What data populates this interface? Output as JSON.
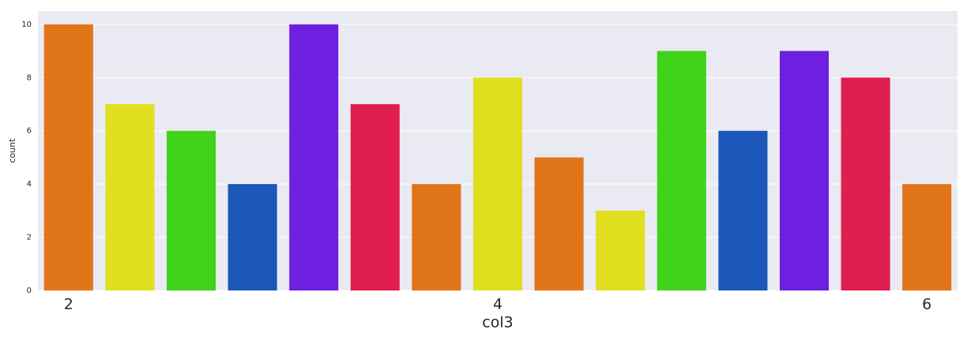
{
  "chart_data": {
    "type": "bar",
    "x_label": "col3",
    "y_label": "count",
    "categories": [
      "2",
      null,
      null,
      null,
      null,
      null,
      null,
      "4",
      null,
      null,
      null,
      null,
      null,
      null,
      "6"
    ],
    "values": [
      10,
      7,
      6,
      4,
      10,
      7,
      4,
      8,
      5,
      3,
      9,
      6,
      9,
      8,
      4
    ],
    "colors": [
      "#e07519",
      "#dfdf1f",
      "#41d21c",
      "#1b56b8",
      "#6e1fe0",
      "#e01e4f",
      "#e07519",
      "#dfdf1f",
      "#e07519",
      "#dfdf1f",
      "#41d21c",
      "#1b56b8",
      "#6e1fe0",
      "#e01e4f",
      "#e07519"
    ],
    "ylim": [
      0,
      10.5
    ],
    "yticks": [
      0,
      2,
      4,
      6,
      8,
      10
    ],
    "grid": true
  }
}
